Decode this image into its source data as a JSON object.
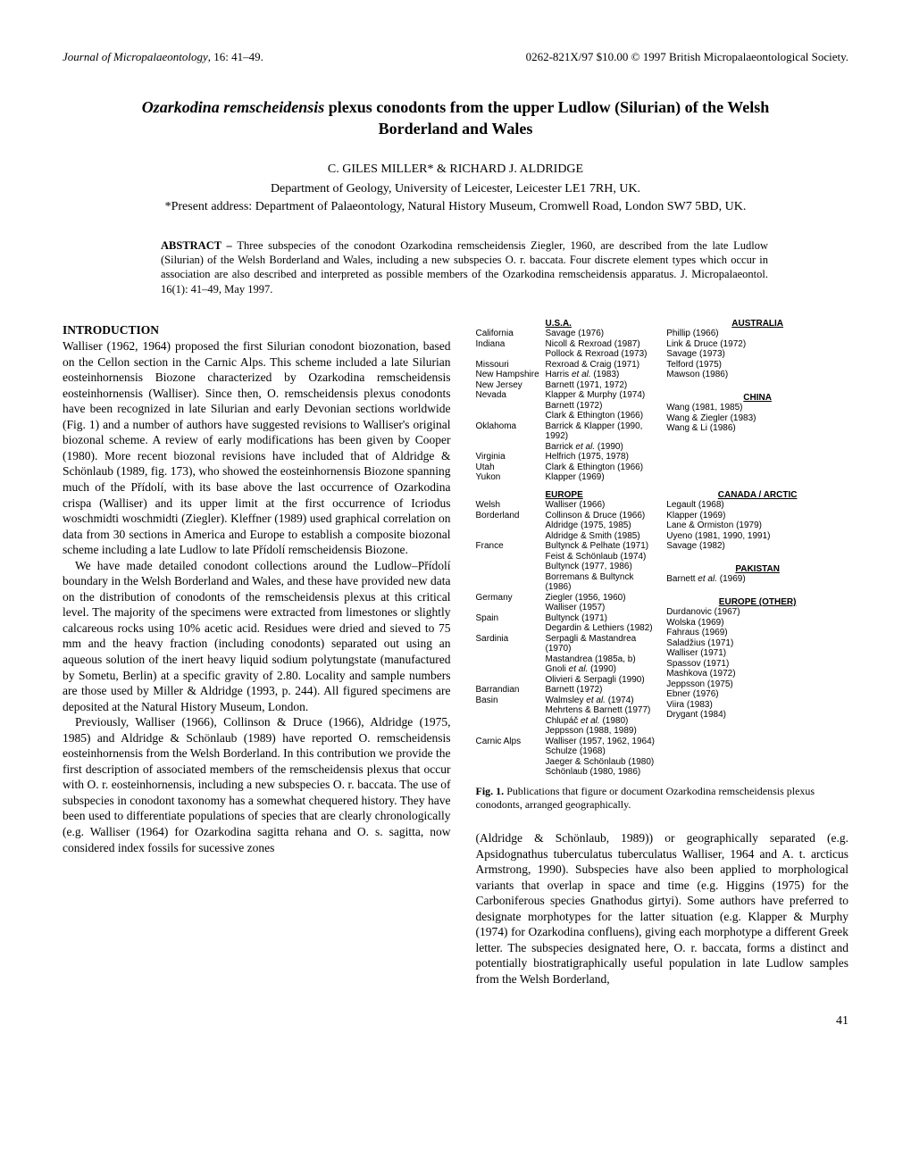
{
  "header": {
    "journal": "Journal of Micropalaeontology",
    "citation": ", 16: 41–49.",
    "right": "0262-821X/97 $10.00 © 1997 British Micropalaeontological Society."
  },
  "title_line_1": "Ozarkodina remscheidensis",
  "title_line_1b": " plexus conodonts from the upper Ludlow (Silurian) of the Welsh",
  "title_line_2": "Borderland and Wales",
  "authors": "C. GILES MILLER* & RICHARD J. ALDRIDGE",
  "affiliation_1": "Department of Geology, University of Leicester, Leicester LE1 7RH, UK.",
  "affiliation_2": "*Present address: Department of Palaeontology, Natural History Museum, Cromwell Road, London SW7 5BD, UK.",
  "abstract_label": "ABSTRACT – ",
  "abstract_body": "Three subspecies of the conodont Ozarkodina remscheidensis Ziegler, 1960, are described from the late Ludlow (Silurian) of the Welsh Borderland and Wales, including a new subspecies O. r. baccata. Four discrete element types which occur in association are also described and interpreted as possible members of the Ozarkodina remscheidensis apparatus. J. Micropalaeontol. 16(1): 41–49, May 1997.",
  "section_introduction": "INTRODUCTION",
  "intro_para_1": "Walliser (1962, 1964) proposed the first Silurian conodont biozonation, based on the Cellon section in the Carnic Alps. This scheme included a late Silurian eosteinhornensis Biozone characterized by Ozarkodina remscheidensis eosteinhornensis (Walliser). Since then, O. remscheidensis plexus conodonts have been recognized in late Silurian and early Devonian sections worldwide (Fig. 1) and a number of authors have suggested revisions to Walliser's original biozonal scheme. A review of early modifications has been given by Cooper (1980). More recent biozonal revisions have included that of Aldridge & Schönlaub (1989, fig. 173), who showed the eosteinhornensis Biozone spanning much of the Přídolí, with its base above the last occurrence of Ozarkodina crispa (Walliser) and its upper limit at the first occurrence of Icriodus woschmidti woschmidti (Ziegler). Kleffner (1989) used graphical correlation on data from 30 sections in America and Europe to establish a composite biozonal scheme including a late Ludlow to late Přídolí remscheidensis Biozone.",
  "intro_para_2": "We have made detailed conodont collections around the Ludlow–Přídolí boundary in the Welsh Borderland and Wales, and these have provided new data on the distribution of conodonts of the remscheidensis plexus at this critical level. The majority of the specimens were extracted from limestones or slightly calcareous rocks using 10% acetic acid. Residues were dried and sieved to 75 mm and the heavy fraction (including conodonts) separated out using an aqueous solution of the inert heavy liquid sodium polytungstate (manufactured by Sometu, Berlin) at a specific gravity of 2.80. Locality and sample numbers are those used by Miller & Aldridge (1993, p. 244). All figured specimens are deposited at the Natural History Museum, London.",
  "intro_para_3_left": "Previously, Walliser (1966), Collinson & Druce (1966), Aldridge (1975, 1985) and Aldridge & Schönlaub (1989) have reported O. remscheidensis eosteinhornensis from the Welsh Borderland. In this contribution we provide the first description of associated members of the remscheidensis plexus that occur with O. r. eosteinhornensis, including a new subspecies O. r. baccata. The use of subspecies in conodont taxonomy has a somewhat chequered history. They have been used to differentiate populations of species that are clearly chronologically (e.g. Walliser (1964) for Ozarkodina sagitta rehana and O. s. sagitta, now considered index fossils for sucessive zones",
  "intro_para_3_right": "(Aldridge & Schönlaub, 1989)) or geographically separated (e.g. Apsidognathus tuberculatus tuberculatus Walliser, 1964 and A. t. arcticus Armstrong, 1990). Subspecies have also been applied to morphological variants that overlap in space and time (e.g. Higgins (1975) for the Carboniferous species Gnathodus girtyi). Some authors have preferred to designate morphotypes for the latter situation (e.g. Klapper & Murphy (1974) for Ozarkodina confluens), giving each morphotype a different Greek letter. The subspecies designated here, O. r. baccata, forms a distinct and potentially biostratigraphically useful population in late Ludlow samples from the Welsh Borderland,",
  "figure": {
    "caption_label": "Fig. 1.",
    "caption_text": " Publications that figure or document Ozarkodina remscheidensis plexus conodonts, arranged geographically.",
    "regions": {
      "usa": {
        "head": "U.S.A.",
        "entries": [
          {
            "loc": "California",
            "refs": "Savage (1976)"
          },
          {
            "loc": "Indiana",
            "refs": "Nicoll & Rexroad (1987)\nPollock & Rexroad (1973)"
          },
          {
            "loc": "Missouri",
            "refs": "Rexroad & Craig (1971)"
          },
          {
            "loc": "New Hampshire",
            "refs": "Harris et al. (1983)"
          },
          {
            "loc": "New Jersey",
            "refs": "Barnett (1971, 1972)"
          },
          {
            "loc": "Nevada",
            "refs": "Klapper & Murphy (1974)\nBarnett (1972)\nClark & Ethington (1966)"
          },
          {
            "loc": "Oklahoma",
            "refs": "Barrick & Klapper (1990, 1992)\nBarrick et al. (1990)"
          },
          {
            "loc": "Virginia",
            "refs": "Helfrich (1975, 1978)"
          },
          {
            "loc": "Utah",
            "refs": "Clark & Ethington (1966)"
          },
          {
            "loc": "Yukon",
            "refs": "Klapper (1969)"
          }
        ]
      },
      "australia": {
        "head": "AUSTRALIA",
        "entries": [
          {
            "loc": "",
            "refs": "Phillip (1966)\nLink & Druce (1972)\nSavage (1973)\nTelford (1975)\nMawson (1986)"
          }
        ]
      },
      "china": {
        "head": "CHINA",
        "entries": [
          {
            "loc": "",
            "refs": "Wang (1981, 1985)\nWang & Ziegler (1983)\nWang & Li (1986)"
          }
        ]
      },
      "europe": {
        "head": "EUROPE",
        "entries": [
          {
            "loc": "Welsh\nBorderland",
            "refs": "Walliser (1966)\nCollinson & Druce (1966)\nAldridge (1975, 1985)\nAldridge & Smith (1985)"
          },
          {
            "loc": "France",
            "refs": "Bultynck & Pelhate (1971)\nFeist & Schönlaub (1974)\nBultynck (1977, 1986)\nBorremans & Bultynck (1986)"
          },
          {
            "loc": "Germany",
            "refs": "Ziegler (1956, 1960)\nWalliser (1957)"
          },
          {
            "loc": "Spain",
            "refs": "Bultynck (1971)\nDegardin & Lethiers (1982)"
          },
          {
            "loc": "Sardinia",
            "refs": "Serpagli & Mastandrea (1970)\nMastandrea (1985a, b)\nGnoli et al. (1990)\nOlivieri & Serpagli (1990)"
          },
          {
            "loc": "Barrandian\nBasin",
            "refs": "Barnett (1972)\nWalmsley et al. (1974)\nMehrtens & Barnett (1977)\nChlupáč et al. (1980)\nJeppsson (1988, 1989)"
          },
          {
            "loc": "Carnic Alps",
            "refs": "Walliser (1957, 1962, 1964)\nSchulze (1968)\nJaeger & Schönlaub (1980)\nSchönlaub (1980, 1986)"
          }
        ]
      },
      "canada_arctic": {
        "head": "CANADA / ARCTIC",
        "entries": [
          {
            "loc": "",
            "refs": "Legault (1968)\nKlapper (1969)\nLane & Ormiston (1979)\nUyeno (1981, 1990, 1991)\nSavage (1982)"
          }
        ]
      },
      "pakistan": {
        "head": "PAKISTAN",
        "entries": [
          {
            "loc": "",
            "refs": "Barnett et al. (1969)"
          }
        ]
      },
      "europe_other": {
        "head": "EUROPE (OTHER)",
        "entries": [
          {
            "loc": "",
            "refs": "Durdanovic (1967)\nWolska (1969)\nFahraus (1969)\nSaladžius (1971)\nWalliser (1971)\nSpassov (1971)\nMashkova (1972)\nJeppsson (1975)\nEbner (1976)\nViira (1983)\nDrygant (1984)"
          }
        ]
      }
    }
  },
  "page_number": "41"
}
